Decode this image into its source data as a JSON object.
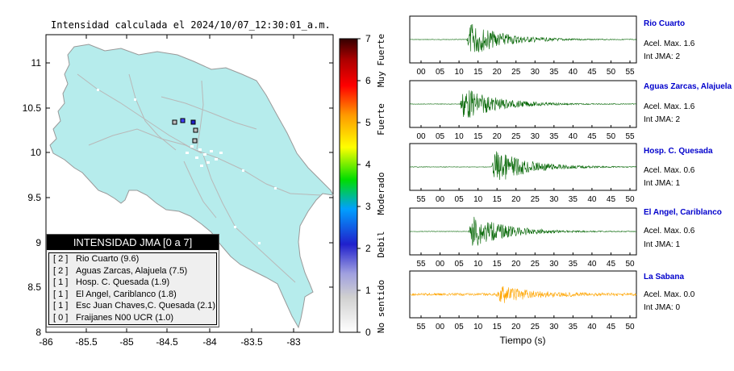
{
  "map": {
    "title": "Intensidad calculada el 2024/10/07_12:30:01_a.m.",
    "lat_ticks": [
      "11",
      "10.5",
      "10",
      "9.5",
      "9",
      "8.5",
      "8"
    ],
    "lon_ticks": [
      "-86",
      "-85.5",
      "-85",
      "-84.5",
      "-84",
      "-83.5",
      "-83"
    ]
  },
  "colorbar": {
    "ticks": [
      "7",
      "6",
      "5",
      "4",
      "3",
      "2",
      "1",
      "0"
    ],
    "categories": [
      "Muy Fuerte",
      "Fuerte",
      "Moderado",
      "Debil",
      "No sentido"
    ]
  },
  "legend": {
    "title": "INTENSIDAD JMA [0 a 7]",
    "entries": [
      {
        "level": "[ 2 ]",
        "station": "Rio Cuarto (9.6)"
      },
      {
        "level": "[ 2 ]",
        "station": "Aguas Zarcas, Alajuela (7.5)"
      },
      {
        "level": "[ 1 ]",
        "station": "Hosp. C. Quesada (1.9)"
      },
      {
        "level": "[ 1 ]",
        "station": "El Angel, Cariblanco (1.8)"
      },
      {
        "level": "[ 1 ]",
        "station": "Esc Juan Chaves,C. Quesada (2.1)"
      },
      {
        "level": "[ 0 ]",
        "station": "Fraijanes N00 UCR (1.0)"
      }
    ]
  },
  "seismograms": {
    "xlabel": "Tiempo (s)",
    "accel_label": "Acel. Max.",
    "int_label": "Int JMA:",
    "stations": [
      {
        "name": "Rio Cuarto",
        "accel": "1.6",
        "jma": "2",
        "ticks": [
          "00",
          "05",
          "10",
          "15",
          "20",
          "25",
          "30",
          "35",
          "40",
          "45",
          "50",
          "55"
        ],
        "color": "#006400"
      },
      {
        "name": "Aguas Zarcas, Alajuela",
        "accel": "1.6",
        "jma": "2",
        "ticks": [
          "00",
          "05",
          "10",
          "15",
          "20",
          "25",
          "30",
          "35",
          "40",
          "45",
          "50",
          "55"
        ],
        "color": "#006400"
      },
      {
        "name": "Hosp. C. Quesada",
        "accel": "0.6",
        "jma": "1",
        "ticks": [
          "55",
          "00",
          "05",
          "10",
          "15",
          "20",
          "25",
          "30",
          "35",
          "40",
          "45",
          "50"
        ],
        "color": "#006400"
      },
      {
        "name": "El Angel, Cariblanco",
        "accel": "0.6",
        "jma": "1",
        "ticks": [
          "55",
          "00",
          "05",
          "10",
          "15",
          "20",
          "25",
          "30",
          "35",
          "40",
          "45",
          "50"
        ],
        "color": "#006400"
      },
      {
        "name": "La Sabana",
        "accel": "0.0",
        "jma": "0",
        "ticks": [
          "55",
          "00",
          "05",
          "10",
          "15",
          "20",
          "25",
          "30",
          "35",
          "40",
          "45",
          "50"
        ],
        "color": "#ffa500"
      }
    ]
  }
}
